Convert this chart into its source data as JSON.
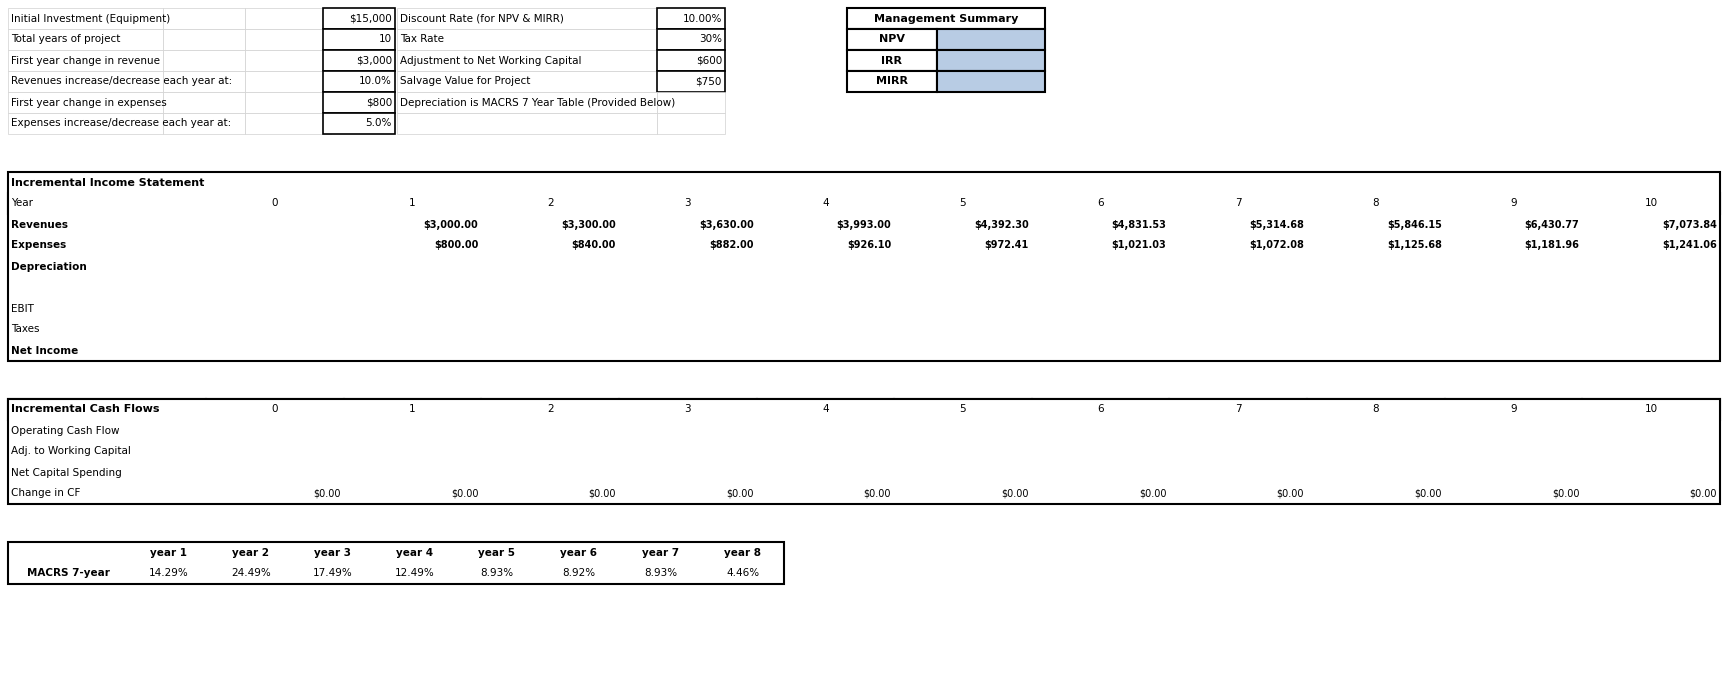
{
  "fig_width": 17.28,
  "fig_height": 6.9,
  "bg_color": "#ffffff",
  "blue": "#b8cce4",
  "white": "#ffffff",
  "black": "#000000",
  "gray": "#d0d0d0",
  "top_left_labels": [
    "Initial Investment (Equipment)",
    "Total years of project",
    "First year change in revenue",
    "Revenues increase/decrease each year at:",
    "First year change in expenses",
    "Expenses increase/decrease each year at:"
  ],
  "top_left_values": [
    "$15,000",
    "10",
    "$3,000",
    "10.0%",
    "$800",
    "5.0%"
  ],
  "top_mid_labels": [
    "Discount Rate (for NPV & MIRR)",
    "Tax Rate",
    "Adjustment to Net Working Capital",
    "Salvage Value for Project",
    "Depreciation is MACRS 7 Year Table (Provided Below)",
    ""
  ],
  "top_mid_values": [
    "10.00%",
    "30%",
    "$600",
    "$750",
    "",
    ""
  ],
  "mgmt_title": "Management Summary",
  "mgmt_rows": [
    "NPV",
    "IRR",
    "MIRR"
  ],
  "inc_title": "Incremental Income Statement",
  "year_headers": [
    "0",
    "1",
    "2",
    "3",
    "4",
    "5",
    "6",
    "7",
    "8",
    "9",
    "10"
  ],
  "revenues": [
    "",
    "$3,000.00",
    "$3,300.00",
    "$3,630.00",
    "$3,993.00",
    "$4,392.30",
    "$4,831.53",
    "$5,314.68",
    "$5,846.15",
    "$6,430.77",
    "$7,073.84"
  ],
  "expenses": [
    "",
    "$800.00",
    "$840.00",
    "$882.00",
    "$926.10",
    "$972.41",
    "$1,021.03",
    "$1,072.08",
    "$1,125.68",
    "$1,181.96",
    "$1,241.06"
  ],
  "inc_row_labels": [
    "Revenues",
    "Expenses",
    "Depreciation",
    "",
    "EBIT",
    "Taxes",
    "Net Income"
  ],
  "inc_row_bold": [
    true,
    true,
    true,
    false,
    false,
    false,
    true
  ],
  "cf_title": "Incremental Cash Flows",
  "cf_row_labels": [
    "Operating Cash Flow",
    "Adj. to Working Capital",
    "Net Capital Spending",
    "Change in CF"
  ],
  "change_cf": [
    "$0.00",
    "$0.00",
    "$0.00",
    "$0.00",
    "$0.00",
    "$0.00",
    "$0.00",
    "$0.00",
    "$0.00",
    "$0.00",
    "$0.00"
  ],
  "macrs_label": "MACRS 7-year",
  "macrs_year_headers": [
    "year 1",
    "year 2",
    "year 3",
    "year 4",
    "year 5",
    "year 6",
    "year 7",
    "year 8"
  ],
  "macrs_values": [
    "14.29%",
    "24.49%",
    "17.49%",
    "12.49%",
    "8.93%",
    "8.92%",
    "8.93%",
    "4.46%"
  ]
}
